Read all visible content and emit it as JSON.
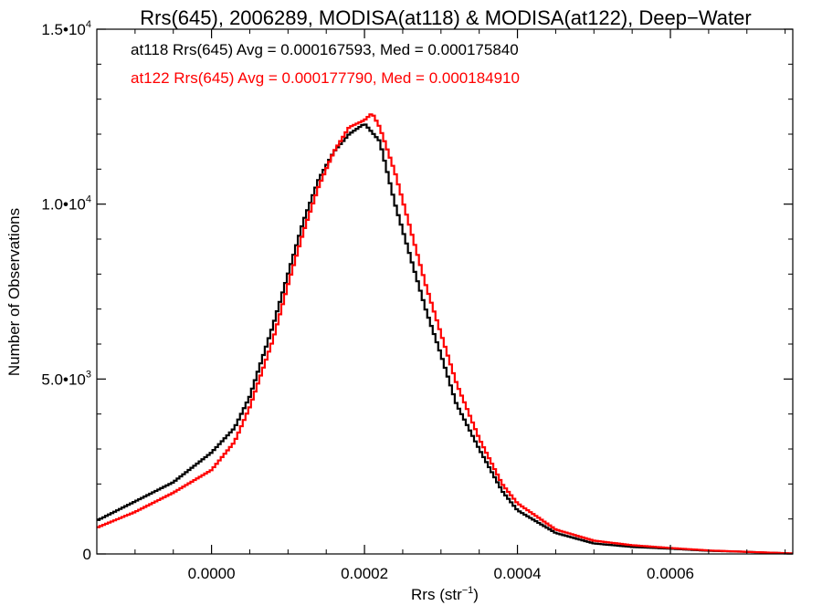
{
  "chart_data": {
    "type": "line",
    "title": "Rrs(645), 2006289, MODISA(at118) & MODISA(at122), Deep−Water",
    "xlabel_main": "Rrs (str",
    "xlabel_sup": "−1",
    "xlabel_close": ")",
    "ylabel": "Number of Observations",
    "xlim": [
      -0.00015,
      0.00076
    ],
    "ylim": [
      0,
      15000
    ],
    "x_ticks": [
      {
        "value": 0.0,
        "label": "0.0000"
      },
      {
        "value": 0.0002,
        "label": "0.0002"
      },
      {
        "value": 0.0004,
        "label": "0.0004"
      },
      {
        "value": 0.0006,
        "label": "0.0006"
      }
    ],
    "y_ticks": [
      {
        "value": 0,
        "base": "0",
        "sup": ""
      },
      {
        "value": 5000,
        "base": "5.0•10",
        "sup": "3"
      },
      {
        "value": 10000,
        "base": "1.0•10",
        "sup": "4"
      },
      {
        "value": 15000,
        "base": "1.5•10",
        "sup": "4"
      }
    ],
    "grid": false,
    "legend_placement": "top-left",
    "series": [
      {
        "name": "at118 Rrs(645) Avg = 0.000167593, Med = 0.000175840",
        "color": "#000000",
        "points": [
          [
            -0.00015,
            950
          ],
          [
            -0.0001,
            1500
          ],
          [
            -5e-05,
            2050
          ],
          [
            0.0,
            2900
          ],
          [
            3e-05,
            3600
          ],
          [
            5e-05,
            4500
          ],
          [
            8e-05,
            6500
          ],
          [
            0.0001,
            8000
          ],
          [
            0.00012,
            9500
          ],
          [
            0.00014,
            10700
          ],
          [
            0.00016,
            11500
          ],
          [
            0.00018,
            12000
          ],
          [
            0.0002,
            12300
          ],
          [
            0.00022,
            11800
          ],
          [
            0.00024,
            10000
          ],
          [
            0.00026,
            8500
          ],
          [
            0.00028,
            7000
          ],
          [
            0.0003,
            5700
          ],
          [
            0.00032,
            4300
          ],
          [
            0.00035,
            3000
          ],
          [
            0.00038,
            1800
          ],
          [
            0.0004,
            1250
          ],
          [
            0.00045,
            600
          ],
          [
            0.0005,
            300
          ],
          [
            0.00055,
            200
          ],
          [
            0.0006,
            150
          ],
          [
            0.00065,
            90
          ],
          [
            0.0007,
            60
          ],
          [
            0.00076,
            10
          ]
        ]
      },
      {
        "name": "at122 Rrs(645) Avg = 0.000177790, Med = 0.000184910",
        "color": "#ff0000",
        "points": [
          [
            -0.00015,
            750
          ],
          [
            -0.0001,
            1200
          ],
          [
            -5e-05,
            1750
          ],
          [
            0.0,
            2400
          ],
          [
            3e-05,
            3200
          ],
          [
            5e-05,
            4200
          ],
          [
            8e-05,
            6100
          ],
          [
            0.0001,
            7700
          ],
          [
            0.00012,
            9200
          ],
          [
            0.00014,
            10500
          ],
          [
            0.00016,
            11500
          ],
          [
            0.00018,
            12200
          ],
          [
            0.0002,
            12400
          ],
          [
            0.00021,
            12600
          ],
          [
            0.00022,
            12200
          ],
          [
            0.00024,
            10900
          ],
          [
            0.00026,
            9300
          ],
          [
            0.00028,
            7700
          ],
          [
            0.0003,
            6300
          ],
          [
            0.00032,
            4900
          ],
          [
            0.00035,
            3300
          ],
          [
            0.00038,
            2000
          ],
          [
            0.0004,
            1450
          ],
          [
            0.00045,
            700
          ],
          [
            0.0005,
            380
          ],
          [
            0.00055,
            250
          ],
          [
            0.0006,
            170
          ],
          [
            0.00065,
            100
          ],
          [
            0.0007,
            60
          ],
          [
            0.00076,
            15
          ]
        ]
      }
    ]
  }
}
